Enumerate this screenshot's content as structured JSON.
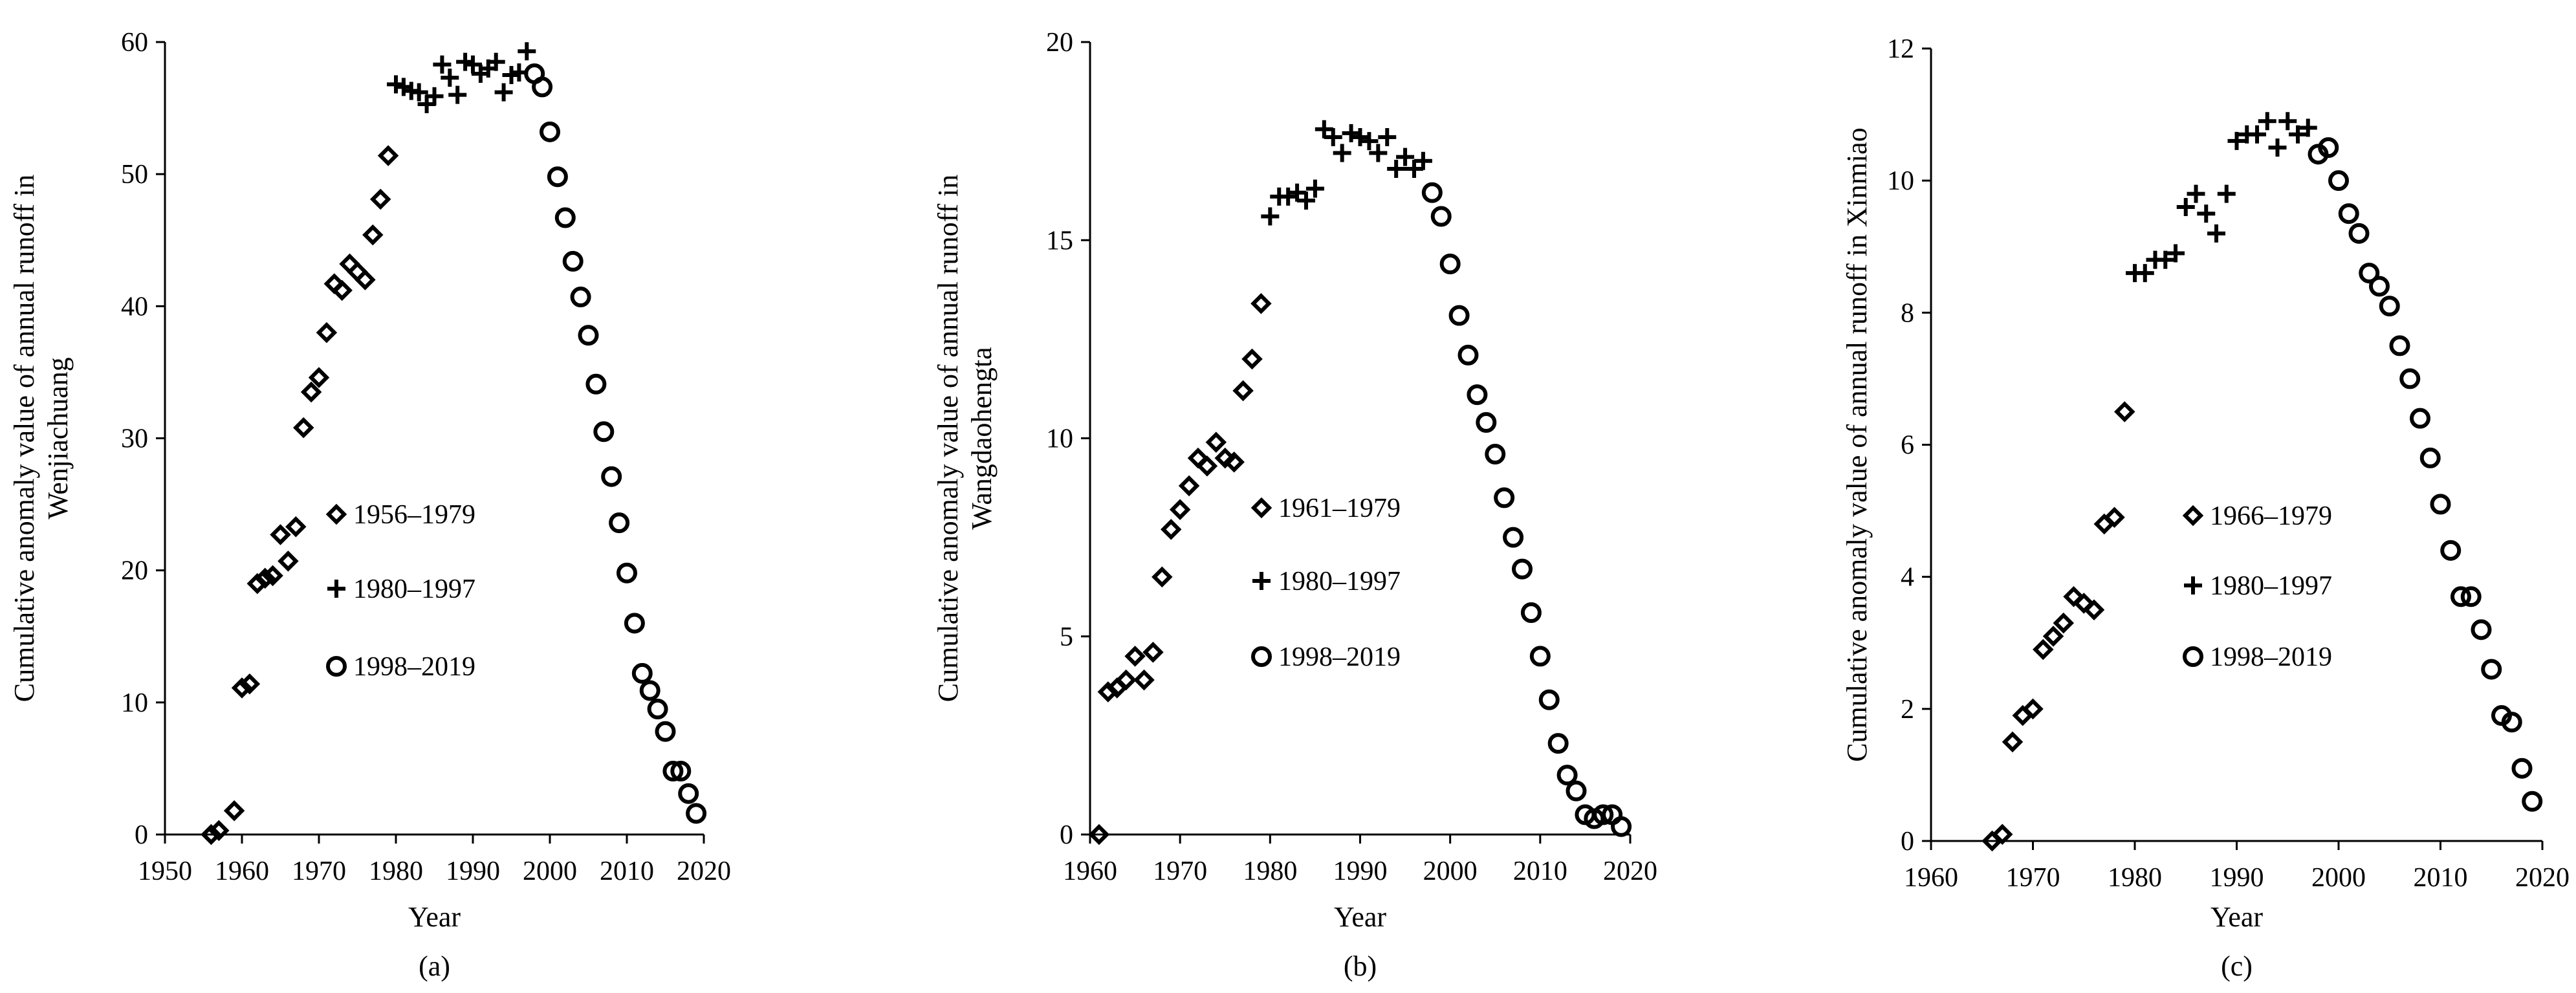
{
  "chart_data": [
    {
      "type": "scatter",
      "panel_label": "(a)",
      "title": "",
      "xlabel": "Year",
      "ylabel_lines": [
        "Cumulative anomaly value of annual runoff in",
        "Wenjiachuang"
      ],
      "xlim": [
        1950,
        2020
      ],
      "ylim": [
        0,
        60
      ],
      "xticks": [
        1950,
        1960,
        1970,
        1980,
        1990,
        2000,
        2010,
        2020
      ],
      "yticks": [
        0,
        10,
        20,
        30,
        40,
        50,
        60
      ],
      "legend_position": "center",
      "series": [
        {
          "name": "1956–1979",
          "marker": "diamond",
          "points": [
            [
              1956,
              0.0
            ],
            [
              1957,
              0.3
            ],
            [
              1959,
              1.8
            ],
            [
              1960,
              11.1
            ],
            [
              1961,
              11.4
            ],
            [
              1962,
              19.0
            ],
            [
              1963,
              19.4
            ],
            [
              1964,
              19.6
            ],
            [
              1965,
              22.7
            ],
            [
              1966,
              20.7
            ],
            [
              1967,
              23.3
            ],
            [
              1968,
              30.8
            ],
            [
              1969,
              33.5
            ],
            [
              1970,
              34.6
            ],
            [
              1971,
              38.0
            ],
            [
              1972,
              41.7
            ],
            [
              1973,
              41.2
            ],
            [
              1974,
              43.2
            ],
            [
              1975,
              42.6
            ],
            [
              1976,
              42.0
            ],
            [
              1977,
              45.4
            ],
            [
              1978,
              48.1
            ],
            [
              1979,
              51.4
            ]
          ]
        },
        {
          "name": "1980–1997",
          "marker": "plus",
          "points": [
            [
              1980,
              56.8
            ],
            [
              1981,
              56.6
            ],
            [
              1982,
              56.3
            ],
            [
              1983,
              56.2
            ],
            [
              1984,
              55.3
            ],
            [
              1985,
              55.9
            ],
            [
              1986,
              58.3
            ],
            [
              1987,
              57.3
            ],
            [
              1988,
              56.0
            ],
            [
              1989,
              58.5
            ],
            [
              1990,
              58.3
            ],
            [
              1991,
              57.6
            ],
            [
              1992,
              58.0
            ],
            [
              1993,
              58.5
            ],
            [
              1994,
              56.2
            ],
            [
              1995,
              57.5
            ],
            [
              1996,
              57.7
            ],
            [
              1997,
              59.3
            ]
          ]
        },
        {
          "name": "1998–2019",
          "marker": "circle",
          "points": [
            [
              1998,
              57.6
            ],
            [
              1999,
              56.6
            ],
            [
              2000,
              53.2
            ],
            [
              2001,
              49.8
            ],
            [
              2002,
              46.7
            ],
            [
              2003,
              43.4
            ],
            [
              2004,
              40.7
            ],
            [
              2005,
              37.8
            ],
            [
              2006,
              34.1
            ],
            [
              2007,
              30.5
            ],
            [
              2008,
              27.1
            ],
            [
              2009,
              23.6
            ],
            [
              2010,
              19.8
            ],
            [
              2011,
              16.0
            ],
            [
              2012,
              12.2
            ],
            [
              2013,
              10.9
            ],
            [
              2014,
              9.5
            ],
            [
              2015,
              7.8
            ],
            [
              2016,
              4.8
            ],
            [
              2017,
              4.8
            ],
            [
              2018,
              3.1
            ],
            [
              2019,
              1.6
            ]
          ]
        }
      ]
    },
    {
      "type": "scatter",
      "panel_label": "(b)",
      "title": "",
      "xlabel": "Year",
      "ylabel_lines": [
        "Cumulative anomaly value of annual runoff in",
        "Wangdaohengta"
      ],
      "xlim": [
        1960,
        2020
      ],
      "ylim": [
        0,
        20
      ],
      "xticks": [
        1960,
        1970,
        1980,
        1990,
        2000,
        2010,
        2020
      ],
      "yticks": [
        0,
        5,
        10,
        15,
        20
      ],
      "legend_position": "center",
      "series": [
        {
          "name": "1961–1979",
          "marker": "diamond",
          "points": [
            [
              1961,
              0.0
            ],
            [
              1962,
              3.6
            ],
            [
              1963,
              3.7
            ],
            [
              1964,
              3.9
            ],
            [
              1965,
              4.5
            ],
            [
              1966,
              3.9
            ],
            [
              1967,
              4.6
            ],
            [
              1968,
              6.5
            ],
            [
              1969,
              7.7
            ],
            [
              1970,
              8.2
            ],
            [
              1971,
              8.8
            ],
            [
              1972,
              9.5
            ],
            [
              1973,
              9.3
            ],
            [
              1974,
              9.9
            ],
            [
              1975,
              9.5
            ],
            [
              1976,
              9.4
            ],
            [
              1977,
              11.2
            ],
            [
              1978,
              12.0
            ],
            [
              1979,
              13.4
            ]
          ]
        },
        {
          "name": "1980–1997",
          "marker": "plus",
          "points": [
            [
              1980,
              15.6
            ],
            [
              1981,
              16.1
            ],
            [
              1982,
              16.1
            ],
            [
              1983,
              16.2
            ],
            [
              1984,
              16.0
            ],
            [
              1985,
              16.3
            ],
            [
              1986,
              17.8
            ],
            [
              1987,
              17.6
            ],
            [
              1988,
              17.2
            ],
            [
              1989,
              17.7
            ],
            [
              1990,
              17.6
            ],
            [
              1991,
              17.5
            ],
            [
              1992,
              17.2
            ],
            [
              1993,
              17.6
            ],
            [
              1994,
              16.8
            ],
            [
              1995,
              17.1
            ],
            [
              1996,
              16.8
            ],
            [
              1997,
              17.0
            ]
          ]
        },
        {
          "name": "1998–2019",
          "marker": "circle",
          "points": [
            [
              1998,
              16.2
            ],
            [
              1999,
              15.6
            ],
            [
              2000,
              14.4
            ],
            [
              2001,
              13.1
            ],
            [
              2002,
              12.1
            ],
            [
              2003,
              11.1
            ],
            [
              2004,
              10.4
            ],
            [
              2005,
              9.6
            ],
            [
              2006,
              8.5
            ],
            [
              2007,
              7.5
            ],
            [
              2008,
              6.7
            ],
            [
              2009,
              5.6
            ],
            [
              2010,
              4.5
            ],
            [
              2011,
              3.4
            ],
            [
              2012,
              2.3
            ],
            [
              2013,
              1.5
            ],
            [
              2014,
              1.1
            ],
            [
              2015,
              0.5
            ],
            [
              2016,
              0.4
            ],
            [
              2017,
              0.5
            ],
            [
              2018,
              0.5
            ],
            [
              2019,
              0.2
            ]
          ]
        }
      ]
    },
    {
      "type": "scatter",
      "panel_label": "(c)",
      "title": "",
      "xlabel": "Year",
      "ylabel_lines": [
        "Cumulative anomaly value of annual runoff in Xinmiao"
      ],
      "xlim": [
        1960,
        2020
      ],
      "ylim": [
        0,
        12
      ],
      "xticks": [
        1960,
        1970,
        1980,
        1990,
        2000,
        2010,
        2020
      ],
      "yticks": [
        0,
        2,
        4,
        6,
        8,
        10,
        12
      ],
      "legend_position": "center",
      "series": [
        {
          "name": "1966–1979",
          "marker": "diamond",
          "points": [
            [
              1966,
              0.0
            ],
            [
              1967,
              0.1
            ],
            [
              1968,
              1.5
            ],
            [
              1969,
              1.9
            ],
            [
              1970,
              2.0
            ],
            [
              1971,
              2.9
            ],
            [
              1972,
              3.1
            ],
            [
              1973,
              3.3
            ],
            [
              1974,
              3.7
            ],
            [
              1975,
              3.6
            ],
            [
              1976,
              3.5
            ],
            [
              1977,
              4.8
            ],
            [
              1978,
              4.9
            ],
            [
              1979,
              6.5
            ]
          ]
        },
        {
          "name": "1980–1997",
          "marker": "plus",
          "points": [
            [
              1980,
              8.6
            ],
            [
              1981,
              8.6
            ],
            [
              1982,
              8.8
            ],
            [
              1983,
              8.8
            ],
            [
              1984,
              8.9
            ],
            [
              1985,
              9.6
            ],
            [
              1986,
              9.8
            ],
            [
              1987,
              9.5
            ],
            [
              1988,
              9.2
            ],
            [
              1989,
              9.8
            ],
            [
              1990,
              10.6
            ],
            [
              1991,
              10.7
            ],
            [
              1992,
              10.7
            ],
            [
              1993,
              10.9
            ],
            [
              1994,
              10.5
            ],
            [
              1995,
              10.9
            ],
            [
              1996,
              10.7
            ],
            [
              1997,
              10.8
            ]
          ]
        },
        {
          "name": "1998–2019",
          "marker": "circle",
          "points": [
            [
              1998,
              10.4
            ],
            [
              1999,
              10.5
            ],
            [
              2000,
              10.0
            ],
            [
              2001,
              9.5
            ],
            [
              2002,
              9.2
            ],
            [
              2003,
              8.6
            ],
            [
              2004,
              8.4
            ],
            [
              2005,
              8.1
            ],
            [
              2006,
              7.5
            ],
            [
              2007,
              7.0
            ],
            [
              2008,
              6.4
            ],
            [
              2009,
              5.8
            ],
            [
              2010,
              5.1
            ],
            [
              2011,
              4.4
            ],
            [
              2012,
              3.7
            ],
            [
              2013,
              3.7
            ],
            [
              2014,
              3.2
            ],
            [
              2015,
              2.6
            ],
            [
              2016,
              1.9
            ],
            [
              2017,
              1.8
            ],
            [
              2018,
              1.1
            ],
            [
              2019,
              0.6
            ]
          ]
        }
      ]
    }
  ]
}
